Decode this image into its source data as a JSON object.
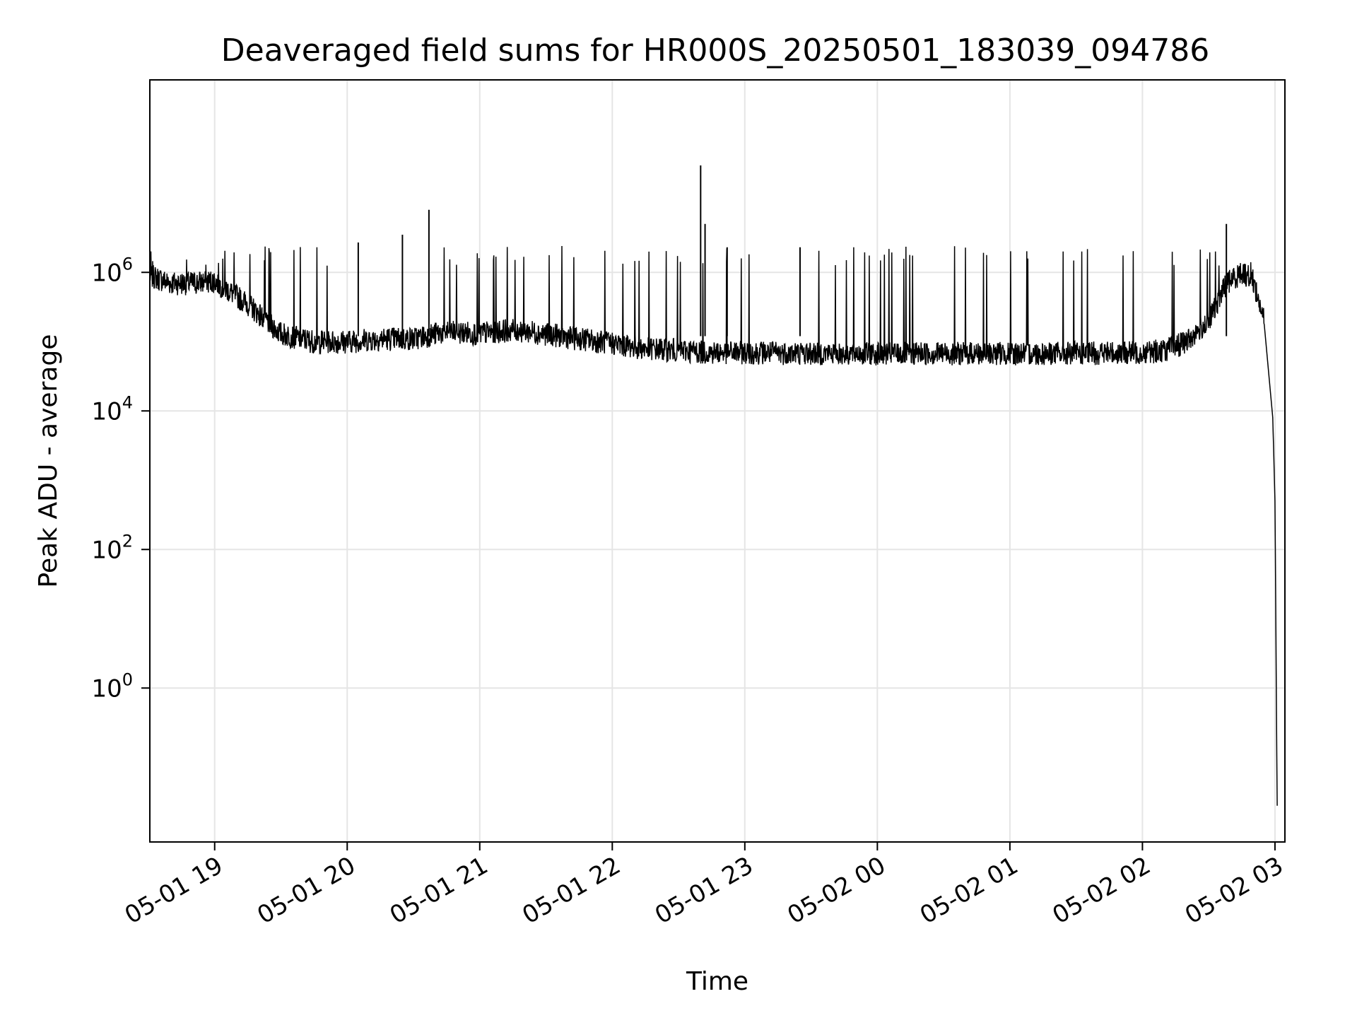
{
  "chart_data": {
    "type": "line",
    "title": "Deaveraged field sums for HR000S_20250501_183039_094786",
    "xlabel": "Time",
    "ylabel": "Peak ADU - average",
    "x_ticks": [
      "05-01 19",
      "05-01 20",
      "05-01 21",
      "05-01 22",
      "05-01 23",
      "05-02 00",
      "05-02 01",
      "05-02 02",
      "05-02 03"
    ],
    "y_ticks": [
      {
        "base": "10",
        "exp": "0"
      },
      {
        "base": "10",
        "exp": "2"
      },
      {
        "base": "10",
        "exp": "4"
      },
      {
        "base": "10",
        "exp": "6"
      }
    ],
    "yscale": "log",
    "ylim": [
      0.006,
      600000000
    ],
    "xlim": [
      "2025-05-01 18:30:39",
      "2025-05-02 03:04:30"
    ],
    "grid": true,
    "line_color": "#000000",
    "grid_color": "#e5e5e5",
    "series": [
      {
        "x": [
          "2025-05-01 18:30:39",
          "2025-05-01 18:40",
          "2025-05-01 18:50",
          "2025-05-01 19:00",
          "2025-05-01 19:15",
          "2025-05-01 19:30",
          "2025-05-01 19:45",
          "2025-05-01 20:00",
          "2025-05-01 20:15",
          "2025-05-01 20:30",
          "2025-05-01 20:45",
          "2025-05-01 21:00",
          "2025-05-01 21:15",
          "2025-05-01 21:30",
          "2025-05-01 21:45",
          "2025-05-01 22:00",
          "2025-05-01 22:15",
          "2025-05-01 22:30",
          "2025-05-01 22:45",
          "2025-05-01 23:00",
          "2025-05-01 23:30",
          "2025-05-02 00:00",
          "2025-05-02 00:30",
          "2025-05-02 01:00",
          "2025-05-02 01:30",
          "2025-05-02 02:00",
          "2025-05-02 02:10",
          "2025-05-02 02:20",
          "2025-05-02 02:30",
          "2025-05-02 02:38",
          "2025-05-02 02:45",
          "2025-05-02 02:50",
          "2025-05-02 02:55",
          "2025-05-02 02:59",
          "2025-05-02 03:00",
          "2025-05-02 03:01"
        ],
        "y": [
          900000,
          700000,
          700000,
          750000,
          350000,
          130000,
          100000,
          100000,
          110000,
          110000,
          140000,
          130000,
          150000,
          130000,
          110000,
          95000,
          80000,
          75000,
          70000,
          70000,
          68000,
          68000,
          68000,
          68000,
          68000,
          70000,
          75000,
          100000,
          200000,
          700000,
          1000000,
          800000,
          200000,
          8000,
          500,
          0.02
        ]
      }
    ],
    "spikes": [
      {
        "t": "2025-05-01 20:37",
        "y": 8000000
      },
      {
        "t": "2025-05-01 20:25",
        "y": 3500000
      },
      {
        "t": "2025-05-01 20:05",
        "y": 2700000
      },
      {
        "t": "2025-05-01 22:40",
        "y": 35000000
      },
      {
        "t": "2025-05-01 22:42",
        "y": 5000000
      },
      {
        "t": "2025-05-01 22:52",
        "y": 2300000
      },
      {
        "t": "2025-05-01 23:25",
        "y": 2300000
      },
      {
        "t": "2025-05-02 02:38",
        "y": 5000000
      }
    ]
  }
}
